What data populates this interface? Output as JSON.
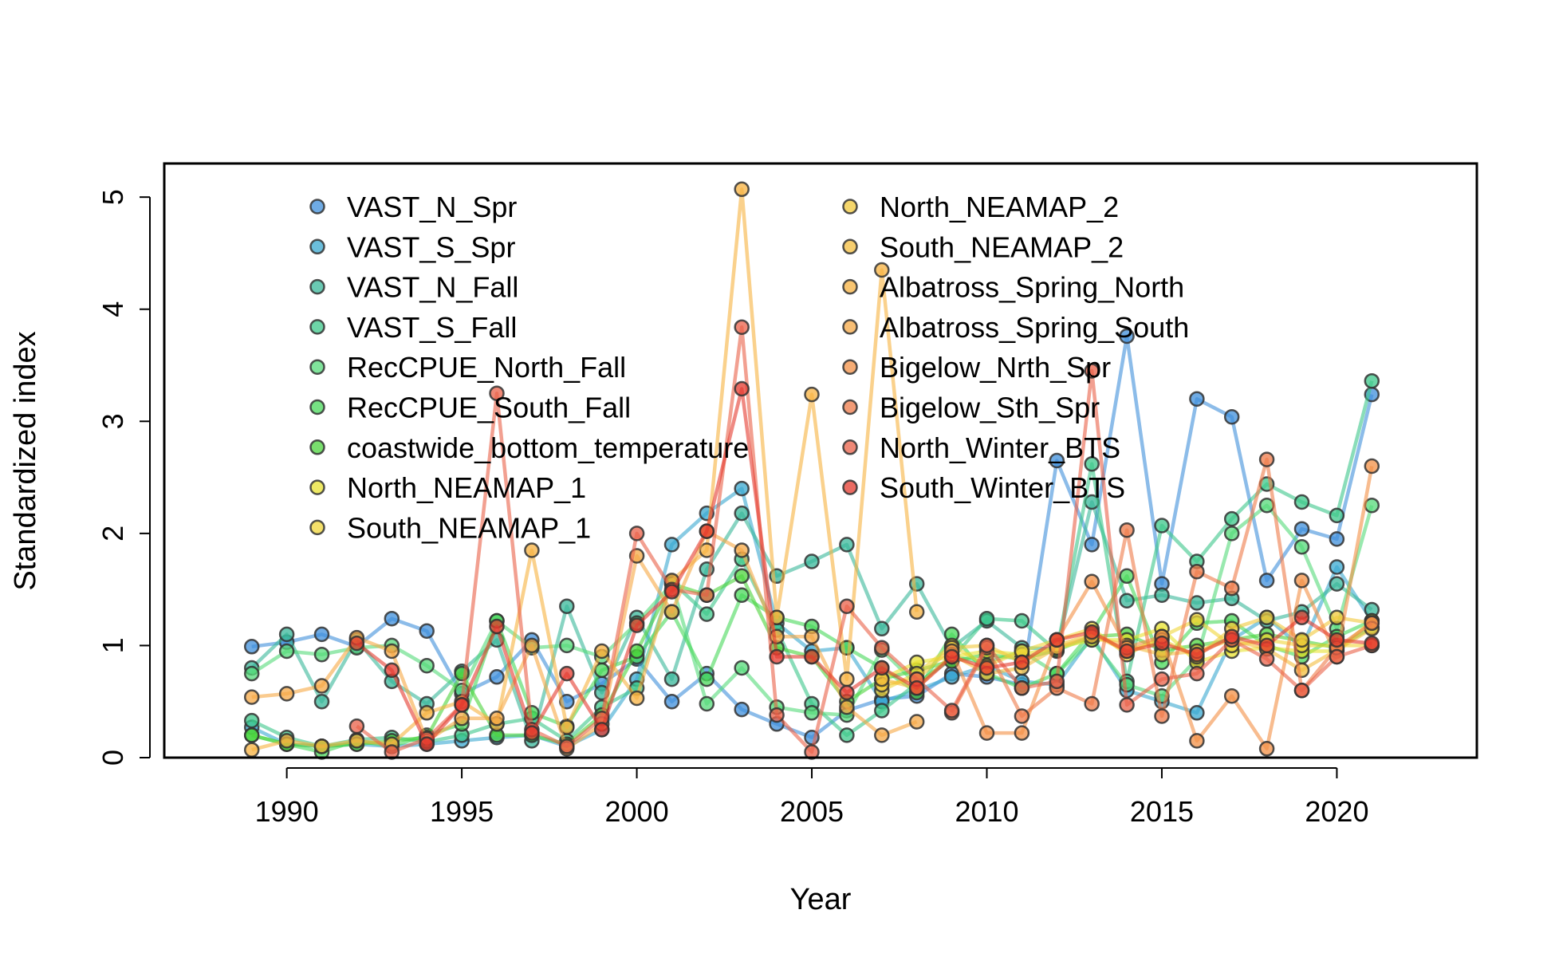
{
  "chart_data": {
    "type": "line",
    "xlabel": "Year",
    "ylabel": "Standardized index",
    "xlim": [
      1986.5,
      2024
    ],
    "ylim": [
      0,
      5.3
    ],
    "xticks": [
      1990,
      1995,
      2000,
      2005,
      2010,
      2015,
      2020
    ],
    "yticks": [
      0,
      1,
      2,
      3,
      4,
      5
    ],
    "grid": false,
    "legend_position": "top-left, inside, two columns",
    "series": [
      {
        "name": "VAST_N_Spr",
        "color": "#3f8fdb",
        "x": [
          1989,
          1990,
          1991,
          1992,
          1993,
          1994,
          1995,
          1996,
          1997,
          1998,
          1999,
          2000,
          2001,
          2002,
          2003,
          2004,
          2005,
          2006,
          2007,
          2008,
          2009,
          2010,
          2011,
          2012,
          2013,
          2014,
          2015,
          2016,
          2017,
          2018,
          2019,
          2020,
          2021
        ],
        "y": [
          0.99,
          1.03,
          1.1,
          0.99,
          1.24,
          1.13,
          0.57,
          0.72,
          1.05,
          0.5,
          0.66,
          0.88,
          0.5,
          0.75,
          0.43,
          0.3,
          0.18,
          0.42,
          0.52,
          0.55,
          0.75,
          0.72,
          0.65,
          2.65,
          1.9,
          3.76,
          1.55,
          3.2,
          3.04,
          1.58,
          2.04,
          1.95,
          3.24
        ]
      },
      {
        "name": "VAST_S_Spr",
        "color": "#3aa8d0",
        "x": [
          1989,
          1990,
          1991,
          1992,
          1993,
          1994,
          1995,
          1996,
          1997,
          1998,
          1999,
          2000,
          2001,
          2002,
          2003,
          2004,
          2005,
          2006,
          2007,
          2008,
          2009,
          2010,
          2011,
          2012,
          2013,
          2014,
          2015,
          2016,
          2017,
          2018,
          2019,
          2020,
          2021
        ],
        "y": [
          0.27,
          0.12,
          0.1,
          0.12,
          0.1,
          0.12,
          0.15,
          0.18,
          0.2,
          0.1,
          0.25,
          0.7,
          1.9,
          2.18,
          2.4,
          1.2,
          0.95,
          0.98,
          0.5,
          0.6,
          0.72,
          0.82,
          0.68,
          0.65,
          1.08,
          0.6,
          0.5,
          0.4,
          1.05,
          1.25,
          0.98,
          1.7,
          1.22
        ]
      },
      {
        "name": "VAST_N_Fall",
        "color": "#38b79a",
        "x": [
          1989,
          1990,
          1991,
          1992,
          1993,
          1994,
          1995,
          1996,
          1997,
          1998,
          1999,
          2000,
          2001,
          2002,
          2003,
          2004,
          2005,
          2006,
          2007,
          2008,
          2009,
          2010,
          2011,
          2012,
          2013,
          2014,
          2015,
          2016,
          2017,
          2018,
          2019,
          2020,
          2021
        ],
        "y": [
          0.8,
          1.1,
          0.5,
          1.05,
          0.68,
          0.48,
          0.77,
          1.05,
          0.15,
          1.35,
          0.58,
          1.25,
          0.7,
          1.68,
          2.18,
          1.62,
          1.75,
          1.9,
          1.15,
          1.55,
          0.98,
          1.22,
          0.98,
          0.97,
          2.28,
          1.4,
          1.45,
          1.38,
          1.42,
          1.22,
          1.3,
          1.55,
          1.32
        ]
      },
      {
        "name": "VAST_S_Fall",
        "color": "#3cc78a",
        "x": [
          1989,
          1990,
          1991,
          1992,
          1993,
          1994,
          1995,
          1996,
          1997,
          1998,
          1999,
          2000,
          2001,
          2002,
          2003,
          2004,
          2005,
          2006,
          2007,
          2008,
          2009,
          2010,
          2011,
          2012,
          2013,
          2014,
          2015,
          2016,
          2017,
          2018,
          2019,
          2020,
          2021
        ],
        "y": [
          0.33,
          0.18,
          0.1,
          0.16,
          0.18,
          0.14,
          0.2,
          0.3,
          0.35,
          0.15,
          0.45,
          0.62,
          1.57,
          1.28,
          1.77,
          1.14,
          0.48,
          0.2,
          0.42,
          0.66,
          0.88,
          1.24,
          1.22,
          0.95,
          2.62,
          0.68,
          2.07,
          1.75,
          2.13,
          2.44,
          2.28,
          2.16,
          3.36
        ]
      },
      {
        "name": "RecCPUE_North_Fall",
        "color": "#55da79",
        "x": [
          1989,
          1990,
          1991,
          1992,
          1993,
          1994,
          1995,
          1996,
          1997,
          1998,
          1999,
          2000,
          2001,
          2002,
          2003,
          2004,
          2005,
          2006,
          2007,
          2008,
          2009,
          2010,
          2011,
          2012,
          2013,
          2014,
          2015,
          2016,
          2017,
          2018,
          2019,
          2020,
          2021
        ],
        "y": [
          0.75,
          0.95,
          0.92,
          0.98,
          1.0,
          0.82,
          0.6,
          1.22,
          0.98,
          1.0,
          0.9,
          1.2,
          1.55,
          0.48,
          0.8,
          0.45,
          0.4,
          0.38,
          0.96,
          0.65,
          0.9,
          0.85,
          0.95,
          0.75,
          1.05,
          0.65,
          0.55,
          0.88,
          2.0,
          2.25,
          1.88,
          1.15,
          2.25
        ]
      },
      {
        "name": "RecCPUE_South_Fall",
        "color": "#48d85a",
        "x": [
          1989,
          1990,
          1991,
          1992,
          1993,
          1994,
          1995,
          1996,
          1997,
          1998,
          1999,
          2000,
          2001,
          2002,
          2003,
          2004,
          2005,
          2006,
          2007,
          2008,
          2009,
          2010,
          2011,
          2012,
          2013,
          2014,
          2015,
          2016,
          2017,
          2018,
          2019,
          2020,
          2021
        ],
        "y": [
          0.2,
          0.12,
          0.05,
          0.15,
          0.1,
          0.2,
          0.3,
          1.22,
          0.4,
          0.28,
          0.78,
          0.9,
          1.3,
          0.7,
          1.45,
          1.25,
          1.17,
          0.98,
          0.8,
          0.58,
          1.1,
          0.75,
          0.62,
          0.75,
          1.12,
          1.62,
          0.85,
          1.2,
          1.22,
          1.0,
          0.9,
          1.08,
          1.22
        ]
      },
      {
        "name": "coastwide_bottom_temperature",
        "color": "#4cd43c",
        "x": [
          1989,
          1990,
          1991,
          1992,
          1993,
          1994,
          1995,
          1996,
          1997,
          1998,
          1999,
          2000,
          2001,
          2002,
          2003,
          2004,
          2005,
          2006,
          2007,
          2008,
          2009,
          2010,
          2011,
          2012,
          2013,
          2014,
          2015,
          2016,
          2017,
          2018,
          2019,
          2020,
          2021
        ],
        "y": [
          0.2,
          0.12,
          0.1,
          0.12,
          0.15,
          0.18,
          0.75,
          0.2,
          0.2,
          0.12,
          0.38,
          0.95,
          1.55,
          1.45,
          1.62,
          0.98,
          0.9,
          0.5,
          0.7,
          0.78,
          0.86,
          0.92,
          0.88,
          0.96,
          1.08,
          1.1,
          0.96,
          1.0,
          1.05,
          1.1,
          1.04,
          0.98,
          1.16
        ]
      },
      {
        "name": "North_NEAMAP_1",
        "color": "#e8e230",
        "x": [
          2007,
          2008,
          2009,
          2010,
          2011,
          2012,
          2013,
          2014,
          2015,
          2016,
          2017,
          2018,
          2019,
          2020,
          2021
        ],
        "y": [
          0.7,
          0.85,
          0.9,
          0.95,
          0.92,
          0.98,
          1.05,
          1.05,
          1.15,
          0.85,
          0.95,
          0.98,
          0.95,
          0.95,
          1.22
        ]
      },
      {
        "name": "South_NEAMAP_1",
        "color": "#f0d638",
        "x": [
          2007,
          2008,
          2009,
          2010,
          2011,
          2012,
          2013,
          2014,
          2015,
          2016,
          2017,
          2018,
          2019,
          2020,
          2021
        ],
        "y": [
          0.6,
          0.75,
          1.0,
          0.82,
          0.95,
          1.05,
          1.15,
          0.92,
          1.08,
          1.23,
          1.0,
          1.05,
          1.0,
          1.0,
          1.0
        ]
      },
      {
        "name": "North_NEAMAP_2",
        "color": "#f2c83a",
        "x": [
          2007,
          2008,
          2009,
          2010,
          2011,
          2012,
          2013,
          2014,
          2015,
          2016,
          2017,
          2018,
          2019,
          2020,
          2021
        ],
        "y": [
          0.65,
          0.7,
          0.98,
          1.0,
          0.85,
          1.0,
          1.1,
          0.95,
          1.05,
          0.9,
          1.15,
          1.25,
          1.05,
          1.25,
          1.2
        ]
      },
      {
        "name": "South_NEAMAP_2",
        "color": "#f4bd3e",
        "x": [
          2007,
          2008,
          2009,
          2010,
          2011,
          2012,
          2013,
          2014,
          2015,
          2016,
          2017,
          2018,
          2019,
          2020,
          2021
        ],
        "y": [
          0.7,
          0.62,
          0.92,
          0.75,
          0.8,
          0.98,
          1.08,
          1.0,
          0.92,
          0.95,
          1.05,
          0.97,
          0.78,
          0.96,
          1.15
        ]
      },
      {
        "name": "Albatross_Spring_North",
        "color": "#f7b240",
        "x": [
          1989,
          1990,
          1991,
          1992,
          1993,
          1994,
          1995,
          1996,
          1997,
          1998,
          1999,
          2000,
          2001,
          2002,
          2003,
          2004,
          2005,
          2006,
          2007,
          2008
        ],
        "y": [
          0.07,
          0.15,
          0.1,
          0.15,
          0.12,
          0.4,
          0.5,
          0.3,
          1.85,
          0.27,
          0.95,
          0.53,
          1.58,
          1.85,
          5.07,
          1.25,
          3.24,
          0.7,
          4.35,
          1.3
        ]
      },
      {
        "name": "Albatross_Spring_South",
        "color": "#f6a845",
        "x": [
          1989,
          1990,
          1991,
          1992,
          1993,
          1994,
          1995,
          1996,
          1997,
          1998,
          1999,
          2000,
          2001,
          2002,
          2003,
          2004,
          2005,
          2006,
          2007,
          2008
        ],
        "y": [
          0.54,
          0.57,
          0.64,
          1.07,
          0.95,
          0.15,
          0.35,
          0.35,
          1.0,
          0.08,
          0.3,
          1.8,
          1.3,
          2.02,
          1.85,
          1.08,
          1.08,
          0.45,
          0.2,
          0.32
        ]
      },
      {
        "name": "Bigelow_Nrth_Spr",
        "color": "#f39045",
        "x": [
          2009,
          2010,
          2011,
          2012,
          2013,
          2014,
          2015,
          2016,
          2017,
          2018,
          2019,
          2020,
          2021
        ],
        "y": [
          0.95,
          0.22,
          0.22,
          1.05,
          1.57,
          0.98,
          1.08,
          0.15,
          0.55,
          0.08,
          1.58,
          0.9,
          2.6
        ]
      },
      {
        "name": "Bigelow_Sth_Spr",
        "color": "#ee7a48",
        "x": [
          2009,
          2010,
          2011,
          2012,
          2013,
          2014,
          2015,
          2016,
          2017,
          2018,
          2019,
          2020,
          2021
        ],
        "y": [
          0.4,
          0.98,
          0.37,
          0.62,
          0.48,
          2.03,
          0.37,
          1.66,
          1.51,
          2.66,
          0.6,
          0.98,
          1.2
        ]
      },
      {
        "name": "North_Winter_BTS",
        "color": "#ea6048",
        "x": [
          1992,
          1993,
          1994,
          1995,
          1996,
          1997,
          1998,
          1999,
          2000,
          2001,
          2002,
          2003,
          2004,
          2005,
          2006,
          2007,
          2008,
          2009,
          2010,
          2011,
          2012,
          2013,
          2014,
          2015,
          2016,
          2017,
          2018,
          2019,
          2020,
          2021
        ],
        "y": [
          0.28,
          0.05,
          0.17,
          0.47,
          3.25,
          0.25,
          0.1,
          0.35,
          2.0,
          1.5,
          1.45,
          3.84,
          0.38,
          0.05,
          1.35,
          0.98,
          0.7,
          0.42,
          1.0,
          0.62,
          0.68,
          3.45,
          0.47,
          0.7,
          0.75,
          1.05,
          0.88,
          0.6,
          0.9,
          1.0
        ]
      },
      {
        "name": "South_Winter_BTS",
        "color": "#e43a2e",
        "x": [
          1992,
          1993,
          1994,
          1995,
          1996,
          1997,
          1998,
          1999,
          2000,
          2001,
          2002,
          2003,
          2004,
          2005,
          2006,
          2007,
          2008,
          2009,
          2010,
          2011,
          2012,
          2013,
          2014,
          2015,
          2016,
          2017,
          2018,
          2019,
          2020,
          2021
        ],
        "y": [
          1.02,
          0.78,
          0.12,
          0.47,
          1.17,
          0.22,
          0.75,
          0.25,
          1.18,
          1.48,
          2.02,
          3.29,
          0.9,
          0.9,
          0.58,
          0.8,
          0.62,
          0.9,
          0.8,
          0.85,
          1.05,
          1.12,
          0.95,
          1.02,
          0.92,
          1.08,
          1.0,
          1.25,
          1.05,
          1.02
        ]
      }
    ]
  }
}
